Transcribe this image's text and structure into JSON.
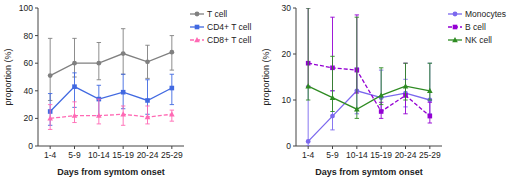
{
  "chart_data": [
    {
      "type": "line",
      "categories": [
        "1-4",
        "5-9",
        "10-14",
        "15-19",
        "20-24",
        "25-29"
      ],
      "x_label": "Days from symtom onset",
      "y_label": "proportion (%)",
      "ylim": [
        0,
        100
      ],
      "yticks": [
        0,
        20,
        40,
        60,
        80,
        100
      ],
      "grid": false,
      "legend": "right",
      "series": [
        {
          "name": "T cell",
          "color": "#808080",
          "marker": "circle",
          "line_style": "solid",
          "values": [
            51,
            60,
            60,
            67,
            61,
            68
          ],
          "yerr_low": [
            18,
            10,
            12,
            15,
            12,
            13
          ],
          "yerr_high": [
            27,
            18,
            15,
            18,
            12,
            12
          ]
        },
        {
          "name": "CD4+ T cell",
          "color": "#4169e1",
          "marker": "square",
          "line_style": "solid",
          "values": [
            25,
            43,
            34,
            39,
            33,
            42
          ],
          "yerr_low": [
            10,
            15,
            12,
            12,
            10,
            12
          ],
          "yerr_high": [
            13,
            10,
            10,
            13,
            15,
            10
          ]
        },
        {
          "name": "CD8+ T cell",
          "color": "#ff69b4",
          "marker": "triangle",
          "line_style": "dashed",
          "values": [
            20,
            22,
            22,
            23,
            21,
            23
          ],
          "yerr_low": [
            8,
            5,
            6,
            8,
            5,
            5
          ],
          "yerr_high": [
            10,
            10,
            12,
            6,
            8,
            3
          ]
        }
      ]
    },
    {
      "type": "line",
      "categories": [
        "1-4",
        "5-9",
        "10-14",
        "15-19",
        "20-24",
        "25-29"
      ],
      "x_label": "Days from symtom onset",
      "y_label": "proportion (%)",
      "ylim": [
        0,
        30
      ],
      "yticks": [
        0,
        10,
        20,
        30
      ],
      "grid": false,
      "legend": "right",
      "series": [
        {
          "name": "Monocytes",
          "color": "#7b68ee",
          "marker": "circle",
          "line_style": "solid",
          "values": [
            1,
            6.5,
            12,
            10.5,
            11.5,
            10
          ],
          "yerr_low": [
            1,
            3,
            5,
            3,
            3,
            3
          ],
          "yerr_high": [
            12,
            5.5,
            5,
            6,
            3,
            8
          ]
        },
        {
          "name": "B cell",
          "color": "#9400d3",
          "marker": "square",
          "line_style": "dashed",
          "values": [
            18,
            17,
            16.5,
            7.5,
            11,
            6.5
          ],
          "yerr_low": [
            5,
            5,
            5,
            1.5,
            4,
            1.5
          ],
          "yerr_high": [
            12,
            11,
            12,
            2,
            7,
            3
          ]
        },
        {
          "name": "NK cell",
          "color": "#2e8b22",
          "marker": "triangle",
          "line_style": "solid",
          "values": [
            13,
            10.5,
            8,
            11,
            13,
            12
          ],
          "yerr_low": [
            3,
            3,
            2,
            2,
            3,
            2
          ],
          "yerr_high": [
            17,
            9,
            20,
            6,
            5,
            6
          ]
        }
      ]
    }
  ]
}
